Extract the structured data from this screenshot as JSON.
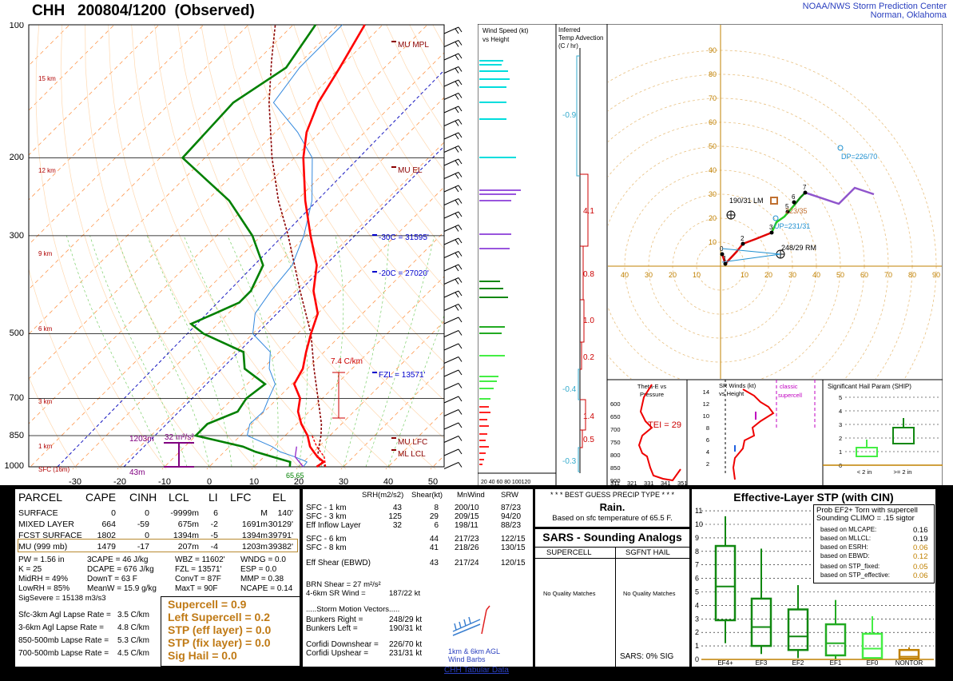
{
  "header": {
    "title": "CHH   200804/1200  (Observed)",
    "org_line1": "NOAA/NWS Storm Prediction Center",
    "org_line2": "Norman, Oklahoma"
  },
  "skewt": {
    "pressure_labels": [
      "100",
      "200",
      "300",
      "500",
      "700",
      "850",
      "1000"
    ],
    "height_labels": [
      "15 km",
      "12 km",
      "9 km",
      "6 km",
      "3 km",
      "1 km",
      "SFC (16m)"
    ],
    "temp_labels": [
      "-30",
      "-20",
      "-10",
      "0",
      "10",
      "20",
      "30",
      "40",
      "50"
    ],
    "annotations": {
      "mu_mpl": "MU MPL",
      "mu_el": "MU EL",
      "m30c": "-30C = 31595'",
      "m20c": "-20C = 27020'",
      "fzl": "FZL = 13571'",
      "mu_lfc": "MU LFC",
      "ml_lcl": "ML LCL",
      "dcape": "7.4 C/km",
      "eff_top": "1203m",
      "eff_srh": "32 m²/s²",
      "eff_bot": "43m",
      "sfc_td": "65.65"
    }
  },
  "chart_data": {
    "type": "line",
    "title": "Skew-T / Hodograph sounding CHH 200804/1200",
    "skewt_profiles": {
      "temperature": [
        [
          1000,
          24
        ],
        [
          975,
          24.5
        ],
        [
          950,
          22
        ],
        [
          925,
          20
        ],
        [
          900,
          18
        ],
        [
          850,
          15
        ],
        [
          800,
          11
        ],
        [
          750,
          7.5
        ],
        [
          700,
          5
        ],
        [
          650,
          0.5
        ],
        [
          600,
          -1
        ],
        [
          550,
          -4
        ],
        [
          500,
          -7
        ],
        [
          450,
          -10
        ],
        [
          400,
          -16
        ],
        [
          350,
          -21
        ],
        [
          300,
          -29
        ],
        [
          250,
          -38
        ],
        [
          200,
          -48
        ],
        [
          175,
          -53
        ],
        [
          150,
          -57
        ],
        [
          125,
          -60
        ],
        [
          100,
          -64
        ]
      ],
      "dewpoint": [
        [
          1000,
          18
        ],
        [
          975,
          17
        ],
        [
          950,
          12
        ],
        [
          925,
          7
        ],
        [
          900,
          3
        ],
        [
          850,
          -10
        ],
        [
          800,
          -10
        ],
        [
          750,
          -6
        ],
        [
          700,
          -7
        ],
        [
          650,
          -6
        ],
        [
          600,
          -14
        ],
        [
          550,
          -18
        ],
        [
          500,
          -31
        ],
        [
          475,
          -36
        ],
        [
          450,
          -33
        ],
        [
          425,
          -30
        ],
        [
          400,
          -30
        ],
        [
          350,
          -33
        ],
        [
          300,
          -42
        ],
        [
          250,
          -55
        ],
        [
          200,
          -75
        ],
        [
          150,
          -76
        ],
        [
          125,
          -72
        ],
        [
          100,
          -75
        ]
      ]
    },
    "hodograph": {
      "points": [
        [
          0,
          0
        ],
        [
          1,
          10
        ],
        [
          2,
          18
        ],
        [
          4,
          21
        ],
        [
          5,
          29
        ],
        [
          6,
          36
        ],
        [
          7,
          37
        ]
      ],
      "bunkers_right": "248/29 RM",
      "bunkers_left": "190/31 LM",
      "mean_wind": "223/35",
      "upshear": "UP=231/31",
      "downshear": "DP=226/70",
      "rings": [
        10,
        20,
        30,
        40,
        50,
        60,
        70,
        80,
        90
      ]
    },
    "ship": {
      "labels": [
        "5",
        "4",
        "3",
        "2",
        "1",
        "0"
      ],
      "lt2": "< 2 in",
      "ge2": ">= 2 in"
    },
    "stp_boxes": [
      {
        "name": "EF4+",
        "low": 1.2,
        "q1": 2.9,
        "med": 5.4,
        "q3": 8.4,
        "high": 10.6
      },
      {
        "name": "EF3",
        "low": 0.4,
        "q1": 1.0,
        "med": 2.4,
        "q3": 4.5,
        "high": 8.2
      },
      {
        "name": "EF2",
        "low": 0.1,
        "q1": 0.7,
        "med": 1.7,
        "q3": 3.7,
        "high": 5.5
      },
      {
        "name": "EF1",
        "low": 0.0,
        "q1": 0.3,
        "med": 1.2,
        "q3": 2.6,
        "high": 4.4
      },
      {
        "name": "EF0",
        "low": 0.0,
        "q1": 0.1,
        "med": 0.8,
        "q3": 1.9,
        "high": 3.2
      },
      {
        "name": "NONTOR",
        "low": 0.0,
        "q1": 0.05,
        "med": 0.2,
        "q3": 0.7,
        "high": 0.9
      }
    ]
  },
  "wind_panel": {
    "title1": "Wind Speed (kt)",
    "title2": "vs Height",
    "axis": "20 40 60 80 100120"
  },
  "advection": {
    "title1": "Inferred",
    "title2": "Temp Advection",
    "title3": "(C / hr)",
    "values": [
      "-0.9",
      "4.1",
      "0.8",
      "1.0",
      "0.2",
      "-0.4",
      "1.4",
      "0.5",
      "-0.3"
    ]
  },
  "theta": {
    "title1": "Theta-E vs",
    "title2": "Pressure",
    "tei": "TEI = 29",
    "p_ticks": [
      "600",
      "650",
      "700",
      "750",
      "800",
      "850",
      "900",
      "950"
    ],
    "x_ticks": [
      "311",
      "321",
      "331",
      "341",
      "351"
    ]
  },
  "srwind": {
    "title1": "SR Winds (kt)",
    "title2": "vs Height",
    "classic1": "classic",
    "classic2": "supercell",
    "ticks": [
      "14",
      "12",
      "10",
      "8",
      "6",
      "4",
      "2"
    ]
  },
  "ship_panel": {
    "title": "Significant Hail Param (SHIP)"
  },
  "parcel": {
    "headers": [
      "PARCEL",
      "CAPE",
      "CINH",
      "LCL",
      "LI",
      "LFC",
      "EL"
    ],
    "rows": [
      [
        "SURFACE",
        "0",
        "0",
        "-9999m",
        "6",
        "M",
        "140'"
      ],
      [
        "MIXED LAYER",
        "664",
        "-59",
        "675m",
        "-2",
        "1691m",
        "30129'"
      ],
      [
        "FCST SURFACE",
        "1802",
        "0",
        "1394m",
        "-5",
        "1394m",
        "39791'"
      ],
      [
        "MU   (999 mb)",
        "1479",
        "-17",
        "207m",
        "-4",
        "1203m",
        "39382'"
      ]
    ],
    "misc": [
      [
        "PW = 1.56 in",
        "3CAPE = 46 J/kg",
        "WBZ = 11602'",
        "WNDG = 0.0"
      ],
      [
        "K = 25",
        "DCAPE = 676 J/kg",
        "FZL = 13571'",
        "ESP = 0.0"
      ],
      [
        "MidRH = 49%",
        "DownT = 63 F",
        "ConvT = 87F",
        "MMP = 0.38"
      ],
      [
        "LowRH = 85%",
        "MeanW = 15.9 g/kg",
        "MaxT = 90F",
        "NCAPE = 0.14"
      ]
    ],
    "sigsevere": "SigSevere = 15138 m3/s3",
    "lapse": [
      [
        "Sfc-3km Agl Lapse Rate =",
        "3.5 C/km"
      ],
      [
        "3-6km Agl Lapse Rate =",
        "4.8 C/km"
      ],
      [
        "850-500mb Lapse Rate =",
        "5.3 C/km"
      ],
      [
        "700-500mb Lapse Rate =",
        "4.5 C/km"
      ]
    ],
    "composites": [
      "Supercell = 0.9",
      "Left Supercell = 0.2",
      "STP (eff layer) = 0.0",
      "STP (fix layer) = 0.0",
      "Sig Hail = 0.0"
    ]
  },
  "kinematics": {
    "headers": [
      "SRH(m2/s2)",
      "Shear(kt)",
      "MnWind",
      "SRW"
    ],
    "rows": [
      [
        "SFC - 1 km",
        "43",
        "8",
        "200/10",
        "87/23"
      ],
      [
        "SFC - 3 km",
        "125",
        "29",
        "209/15",
        "94/20"
      ],
      [
        "Eff Inflow Layer",
        "32",
        "6",
        "198/11",
        "88/23"
      ],
      [
        "SFC - 6 km",
        "44",
        "217/23",
        "122/15"
      ],
      [
        "SFC - 8 km",
        "41",
        "218/26",
        "130/15"
      ],
      [
        "Eff Shear (EBWD)",
        "43",
        "217/24",
        "120/15"
      ]
    ],
    "brn1": "BRN Shear =  27 m²/s²",
    "brn2": "4-6km SR Wind =",
    "brn2v": "187/22 kt",
    "storm_title": ".....Storm Motion Vectors.....",
    "motions": [
      [
        "Bunkers Right =",
        "248/29 kt"
      ],
      [
        "Bunkers Left =",
        "190/31 kt"
      ],
      [
        "Corfidi Downshear =",
        "226/70 kt"
      ],
      [
        "Corfidi Upshear =",
        "231/31 kt"
      ]
    ],
    "barb_label1": "1km & 6km AGL",
    "barb_label2": "Wind Barbs"
  },
  "precip": {
    "title": "* * * BEST GUESS PRECIP TYPE * * *",
    "type": "Rain.",
    "basis": "Based on sfc temperature of 65.5 F."
  },
  "sars": {
    "title": "SARS - Sounding Analogs",
    "col1": "SUPERCELL",
    "col2": "SGFNT HAIL",
    "nomatch": "No Quality Matches",
    "sig": "SARS:  0% SIG"
  },
  "stp": {
    "title": "Effective-Layer STP (with CIN)",
    "prob1": "Prob EF2+ Torn with supercell",
    "prob2": "Sounding CLIMO = .15 sigtor",
    "probs": [
      [
        "based on MLCAPE:",
        "0.16"
      ],
      [
        "based on MLLCL:",
        "0.19"
      ],
      [
        "based on ESRH:",
        "0.06"
      ],
      [
        "based on EBWD:",
        "0.12"
      ],
      [
        "based on STP_fixed:",
        "0.05"
      ],
      [
        "based on STP_effective:",
        "0.06"
      ]
    ],
    "yticks": [
      "11",
      "10",
      "9",
      "8",
      "7",
      "6",
      "5",
      "4",
      "3",
      "2",
      "1",
      "0"
    ]
  },
  "footer": {
    "link": "CHH Tabular Data"
  },
  "colors": {
    "temp": "#ff0000",
    "dew": "#008000",
    "blue": "#0000cc",
    "dry": "#ffa060",
    "gold": "#c08000",
    "purple": "#8844cc",
    "cyan": "#00e5e5"
  }
}
